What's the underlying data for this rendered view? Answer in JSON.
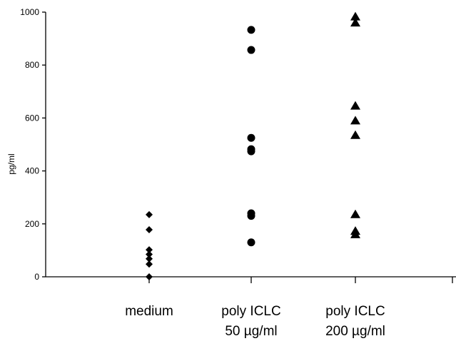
{
  "chart_data": {
    "type": "scatter",
    "title": "",
    "xlabel": "",
    "ylabel": "pg/ml",
    "ylim": [
      0,
      1000
    ],
    "yticks": [
      0,
      200,
      400,
      600,
      800,
      1000
    ],
    "grid": false,
    "categories": [
      {
        "lines": [
          "medium"
        ]
      },
      {
        "lines": [
          "poly ICLC",
          "50 µg/ml"
        ]
      },
      {
        "lines": [
          "poly ICLC",
          "200 µg/ml"
        ]
      }
    ],
    "series": [
      {
        "category": 0,
        "marker": "diamond",
        "values": [
          235,
          178,
          102,
          85,
          68,
          48,
          0
        ]
      },
      {
        "category": 1,
        "marker": "circle",
        "values": [
          933,
          857,
          525,
          482,
          474,
          240,
          230,
          130
        ]
      },
      {
        "category": 2,
        "marker": "triangle",
        "values": [
          985,
          962,
          648,
          592,
          537,
          238,
          175,
          162
        ]
      }
    ],
    "colors": {
      "marker": "#000000",
      "axis": "#000000"
    }
  }
}
